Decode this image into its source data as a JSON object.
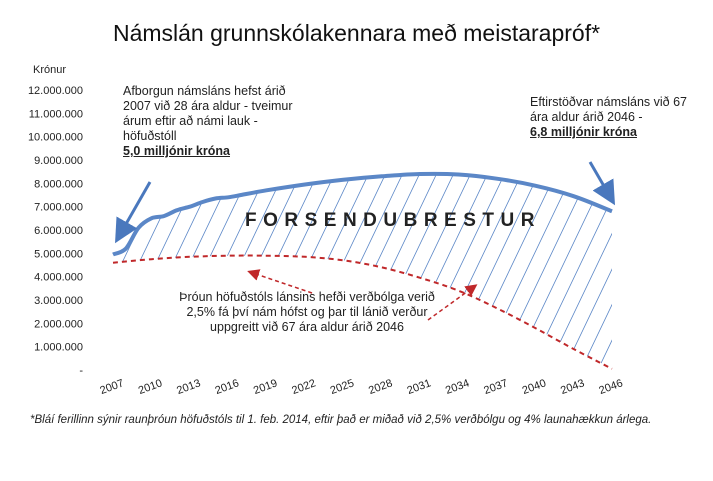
{
  "title": "Námslán grunnskólakennara með meistarapróf*",
  "annotations": {
    "left_text": "Afborgun námsláns hefst árið 2007 við 28 ára aldur - tveimur árum eftir að námi lauk - höfuðstóll",
    "left_bold": "5,0 milljónir króna",
    "right_text": "Eftirstöðvar námsláns við 67 ára aldur árið 2046 -",
    "right_bold": "6,8 milljónir króna",
    "red_text": "Þróun höfuðstóls lánsins hefði verðbólga verið 2,5% fá því nám hófst og þar til lánið verður  uppgreitt við 67 ára aldur árið 2046",
    "area_label": "FORSENDUBRESTUR"
  },
  "footnote": "*Bláí ferillinn sýnir raunþróun höfuðstóls til 1. feb. 2014, eftir það er miðað við  2,5% verðbólgu og 4% launahækkun árlega.",
  "chart_data": {
    "type": "line",
    "title": "Námslán grunnskólakennara með meistarapróf*",
    "ylabel": "Krónur",
    "xlabel": "",
    "ylim": [
      0,
      12000000
    ],
    "xlim": [
      2007,
      2046
    ],
    "yticks": [
      0,
      1000000,
      2000000,
      3000000,
      4000000,
      5000000,
      6000000,
      7000000,
      8000000,
      9000000,
      10000000,
      11000000,
      12000000
    ],
    "yticklabels": [
      "-",
      "1.000.000",
      "2.000.000",
      "3.000.000",
      "4.000.000",
      "5.000.000",
      "6.000.000",
      "7.000.000",
      "8.000.000",
      "9.000.000",
      "10.000.000",
      "11.000.000",
      "12.000.000"
    ],
    "xticks": [
      2007,
      2010,
      2013,
      2016,
      2019,
      2022,
      2025,
      2028,
      2031,
      2034,
      2037,
      2040,
      2043,
      2046
    ],
    "grid": false,
    "series": [
      {
        "style": "solid",
        "color": "#5b87c7",
        "x": [
          2007,
          2008,
          2009,
          2010,
          2011,
          2012,
          2013,
          2014,
          2015,
          2016,
          2017,
          2019,
          2022,
          2025,
          2028,
          2031,
          2034,
          2037,
          2040,
          2043,
          2046
        ],
        "y": [
          4950000,
          5200000,
          6100000,
          6500000,
          6600000,
          6850000,
          7000000,
          7200000,
          7350000,
          7400000,
          7500000,
          7700000,
          7950000,
          8150000,
          8300000,
          8400000,
          8380000,
          8200000,
          7900000,
          7450000,
          6800000
        ]
      },
      {
        "style": "dashed",
        "color": "#c0282a",
        "x": [
          2007,
          2010,
          2013,
          2016,
          2019,
          2022,
          2025,
          2028,
          2031,
          2034,
          2037,
          2040,
          2043,
          2046
        ],
        "y": [
          4600000,
          4750000,
          4850000,
          4900000,
          4900000,
          4850000,
          4700000,
          4400000,
          3950000,
          3400000,
          2650000,
          1800000,
          900000,
          50000
        ]
      }
    ]
  }
}
